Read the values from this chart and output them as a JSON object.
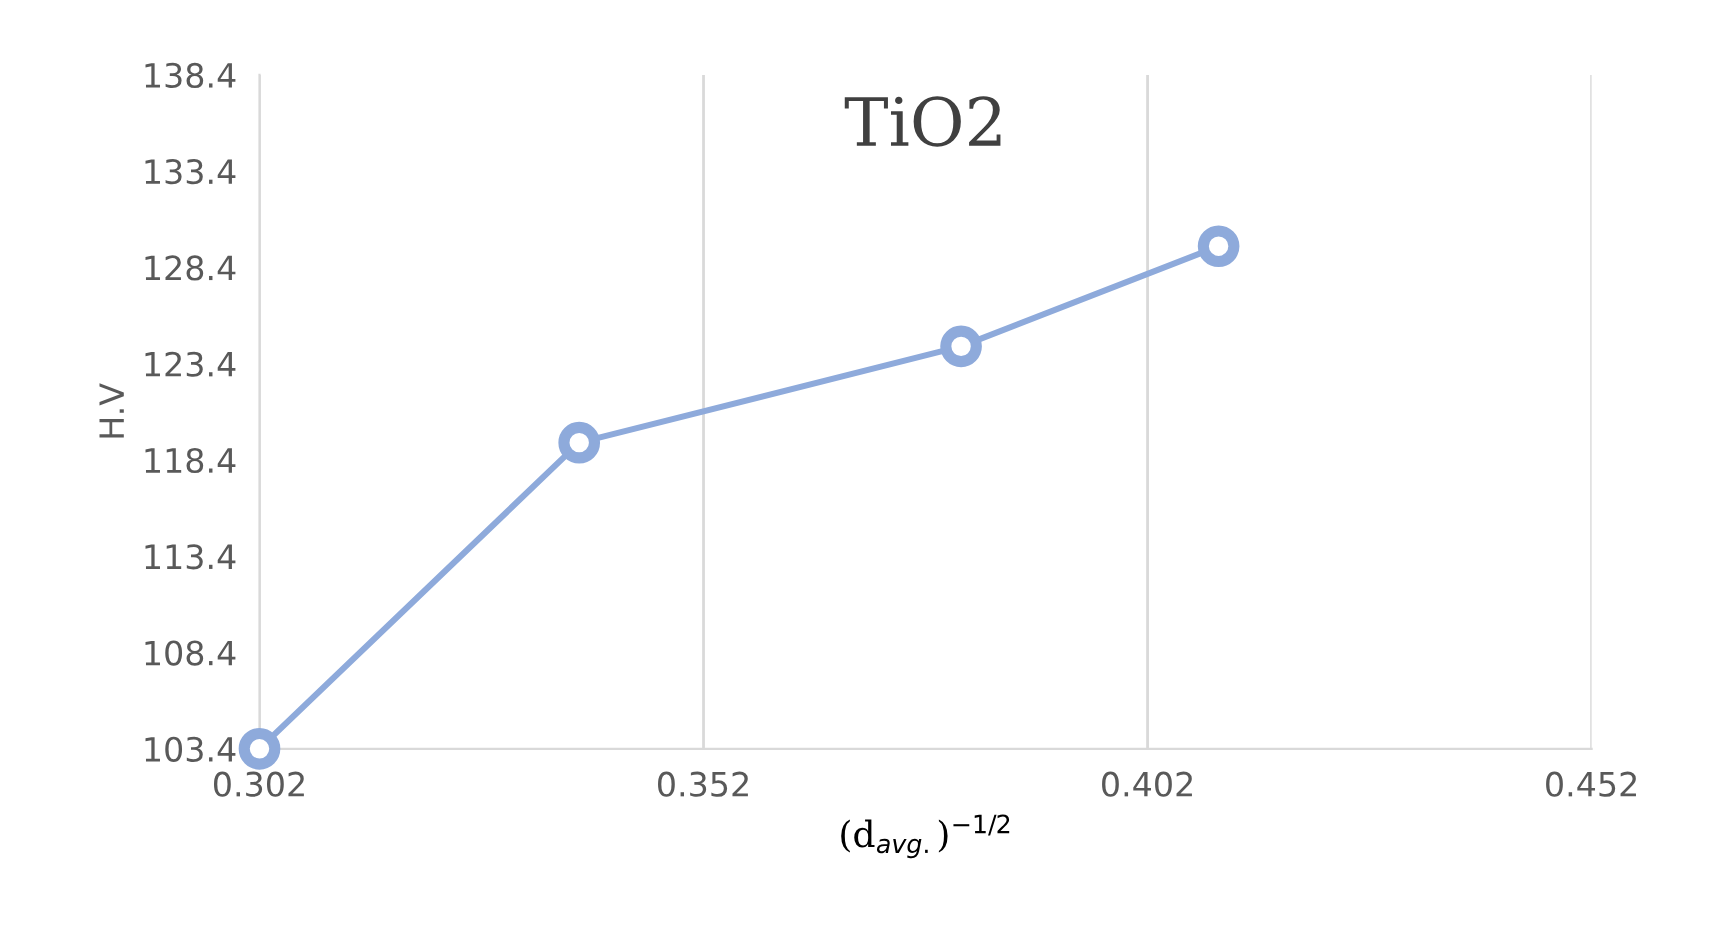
{
  "chart_data": {
    "type": "line",
    "title": "TiO2",
    "xlabel": "(d$_{avg.}$)$^{−1/2}$",
    "ylabel": "H.V",
    "x": [
      0.302,
      0.338,
      0.381,
      0.41
    ],
    "series": [
      {
        "color": "#8eaadb",
        "values": [
          103.4,
          119.3,
          124.3,
          129.5
        ]
      }
    ],
    "xlim": [
      0.302,
      0.452
    ],
    "xticks": [
      0.302,
      0.352,
      0.402,
      0.452
    ],
    "ylim": [
      103.4,
      138.4
    ],
    "yticks": [
      103.4,
      108.4,
      113.4,
      118.4,
      123.4,
      128.4,
      133.4,
      138.4
    ],
    "grid": "x",
    "marker": "circle",
    "line_style": "solid"
  }
}
